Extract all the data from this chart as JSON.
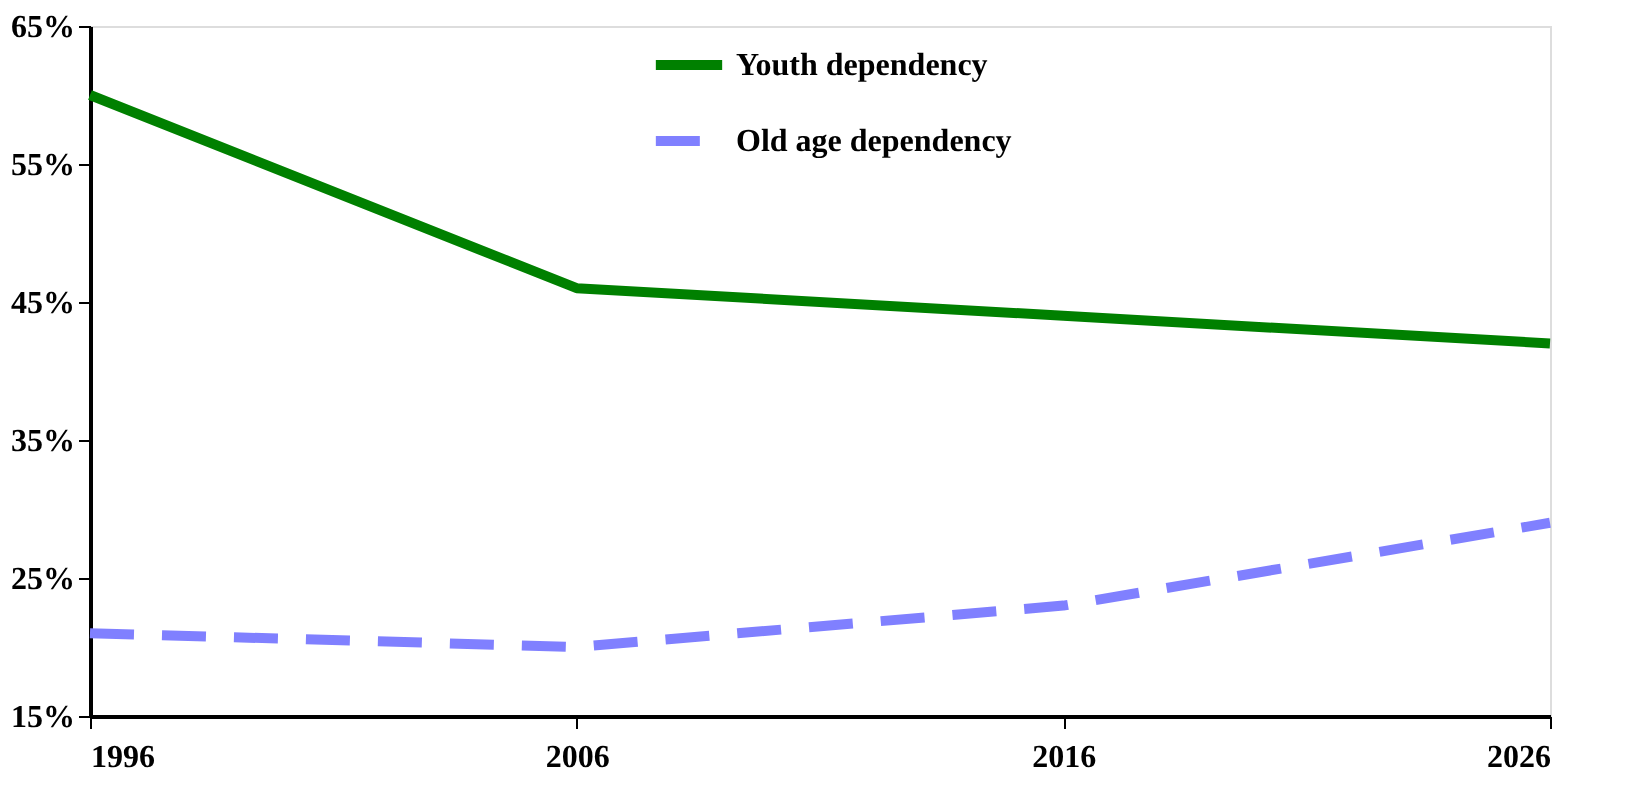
{
  "chart_data": {
    "type": "line",
    "x": [
      1996,
      2006,
      2016,
      2026
    ],
    "series": [
      {
        "name": "Youth dependency",
        "color": "#008000",
        "values": [
          60,
          46,
          44,
          42
        ],
        "line_style": "solid"
      },
      {
        "name": "Old age dependency",
        "color": "#8080ff",
        "values": [
          21,
          20,
          23,
          29
        ],
        "line_style": "dashed"
      }
    ],
    "xlim": [
      1996,
      2026
    ],
    "xticks": [
      1996,
      2006,
      2016,
      2026
    ],
    "ylim": [
      15,
      65
    ],
    "yticks": [
      {
        "value": 15,
        "label": "15%"
      },
      {
        "value": 25,
        "label": "25%"
      },
      {
        "value": 35,
        "label": "35%"
      },
      {
        "value": 45,
        "label": "45%"
      },
      {
        "value": 55,
        "label": "55%"
      },
      {
        "value": 65,
        "label": "65%"
      }
    ],
    "grid": false,
    "legend": "top",
    "marker": "none"
  }
}
